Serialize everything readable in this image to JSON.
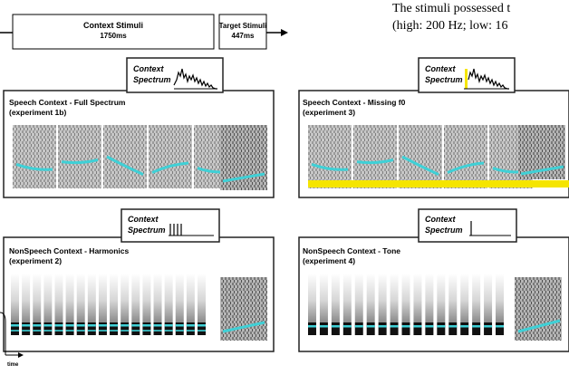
{
  "caption": {
    "line1": "The stimuli possessed t",
    "line2": "(high: 200 Hz; low: 16"
  },
  "timeline": {
    "context_label": "Context Stimuli",
    "context_duration": "1750ms",
    "target_label": "Target Stimuli",
    "target_duration": "447ms",
    "axis_label": "time"
  },
  "panels": [
    {
      "id": "speech-full",
      "title": "Speech Context - Full Spectrum",
      "subtitle": "(experiment 1b)",
      "spectrum_label_1": "Context",
      "spectrum_label_2": "Spectrum",
      "spectrum_type": "speech"
    },
    {
      "id": "speech-missing",
      "title": "Speech Context - Missing f0",
      "subtitle": "(experiment 3)",
      "spectrum_label_1": "Context",
      "spectrum_label_2": "Spectrum",
      "spectrum_type": "speech-missing-f0"
    },
    {
      "id": "nonspeech-harmonics",
      "title": "NonSpeech Context - Harmonics",
      "subtitle": "(experiment 2)",
      "spectrum_label_1": "Context",
      "spectrum_label_2": "Spectrum",
      "spectrum_type": "harmonics"
    },
    {
      "id": "nonspeech-tone",
      "title": "NonSpeech Context - Tone",
      "subtitle": "(experiment 4)",
      "spectrum_label_1": "Context",
      "spectrum_label_2": "Spectrum",
      "spectrum_type": "tone"
    }
  ],
  "colors": {
    "trace": "#3fd0d6",
    "missing_band": "#f5e500",
    "frame": "#222222"
  }
}
